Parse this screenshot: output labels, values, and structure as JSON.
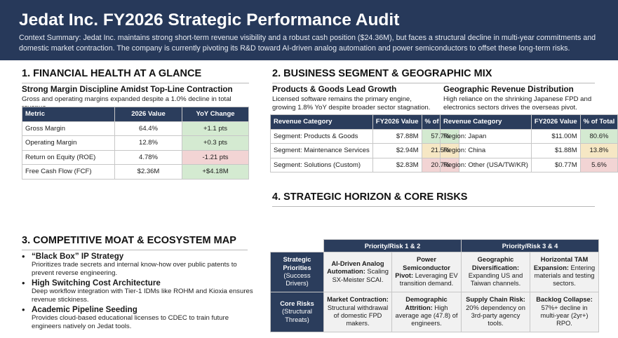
{
  "header": {
    "title": "Jedat Inc. FY2026 Strategic Performance Audit",
    "summary": "Context Summary: Jedat Inc. maintains strong short-term revenue visibility and a robust cash position ($24.36M), but faces a structural decline in multi-year commitments and domestic market contraction. The company is currently pivoting its R&D toward AI-driven analog automation and power semiconductors to offset these long-term risks."
  },
  "colors": {
    "header_bg": "#27395a",
    "positive": "#d4ead1",
    "negative": "#f2d4d4",
    "neutral": "#f6e7c4"
  },
  "financial": {
    "title": "1. FINANCIAL HEALTH AT A GLANCE",
    "subtitle": "Strong Margin Discipline Amidst Top-Line Contraction",
    "note": "Gross and operating margins expanded despite a 1.0% decline in total revenue.",
    "columns": [
      "Metric",
      "2026 Value",
      "YoY Change"
    ],
    "rows": [
      {
        "metric": "Gross Margin",
        "value": "64.4%",
        "change": "+1.1 pts",
        "tone": "pos"
      },
      {
        "metric": "Operating Margin",
        "value": "12.8%",
        "change": "+0.3 pts",
        "tone": "pos"
      },
      {
        "metric": "Return on Equity (ROE)",
        "value": "4.78%",
        "change": "-1.21 pts",
        "tone": "neg"
      },
      {
        "metric": "Free Cash Flow (FCF)",
        "value": "$2.36M",
        "change": "+$4.18M",
        "tone": "pos"
      }
    ]
  },
  "segments": {
    "title": "2. BUSINESS SEGMENT & GEOGRAPHIC MIX",
    "products": {
      "subtitle": "Products & Goods Lead Growth",
      "note": "Licensed software remains the primary engine, growing 1.8% YoY despite broader sector stagnation.",
      "columns": [
        "Revenue Category",
        "FY2026 Value",
        "% of Total"
      ],
      "rows": [
        {
          "category": "Segment: Products & Goods",
          "value": "$7.88M",
          "pct": "57.7%",
          "tone": "pos"
        },
        {
          "category": "Segment: Maintenance Services",
          "value": "$2.94M",
          "pct": "21.5%",
          "tone": "mid"
        },
        {
          "category": "Segment: Solutions (Custom)",
          "value": "$2.83M",
          "pct": "20.7%",
          "tone": "neg"
        }
      ]
    },
    "geo": {
      "subtitle": "Geographic Revenue Distribution",
      "note": "High reliance on the shrinking Japanese FPD and electronics sectors drives the overseas pivot.",
      "columns": [
        "Revenue Category",
        "FY2026 Value",
        "% of Total"
      ],
      "rows": [
        {
          "category": "Region: Japan",
          "value": "$11.00M",
          "pct": "80.6%",
          "tone": "pos"
        },
        {
          "category": "Region: China",
          "value": "$1.88M",
          "pct": "13.8%",
          "tone": "mid"
        },
        {
          "category": "Region: Other (USA/TW/KR)",
          "value": "$0.77M",
          "pct": "5.6%",
          "tone": "neg"
        }
      ]
    }
  },
  "moat": {
    "title": "3. COMPETITIVE MOAT & ECOSYSTEM MAP",
    "items": [
      {
        "title": "“Black Box” IP Strategy",
        "desc": "Prioritizes trade secrets and internal know-how over public patents to prevent reverse engineering."
      },
      {
        "title": "High Switching Cost Architecture",
        "desc": "Deep workflow integration with Tier-1 IDMs like ROHM and Kioxia ensures revenue stickiness."
      },
      {
        "title": "Academic Pipeline Seeding",
        "desc": "Provides cloud-based educational licenses to CDEC to train future engineers natively on Jedat tools."
      }
    ]
  },
  "horizon": {
    "title": "4. STRATEGIC HORIZON & CORE RISKS",
    "groups": [
      "Priority/Risk 1 & 2",
      "Priority/Risk 3 & 4"
    ],
    "rows": [
      {
        "head": "Strategic Priorities",
        "sub": "(Success Drivers)",
        "cells": [
          {
            "b": "AI-Driven Analog Automation:",
            "t": " Scaling SX-Meister SCAI."
          },
          {
            "b": "Power Semiconductor Pivot:",
            "t": " Leveraging EV transition demand."
          },
          {
            "b": "Geographic Diversification:",
            "t": " Expanding US and Taiwan channels."
          },
          {
            "b": "Horizontal TAM Expansion:",
            "t": " Entering materials and testing sectors."
          }
        ]
      },
      {
        "head": "Core Risks",
        "sub": "(Structural Threats)",
        "cells": [
          {
            "b": "Market Contraction:",
            "t": " Structural withdrawal of domestic FPD makers."
          },
          {
            "b": "Demographic Attrition:",
            "t": " High average age (47.8) of engineers."
          },
          {
            "b": "Supply Chain Risk:",
            "t": " 20% dependency on 3rd-party agency tools."
          },
          {
            "b": "Backlog Collapse:",
            "t": " 57%+ decline in multi-year (2yr+) RPO."
          }
        ]
      }
    ]
  }
}
